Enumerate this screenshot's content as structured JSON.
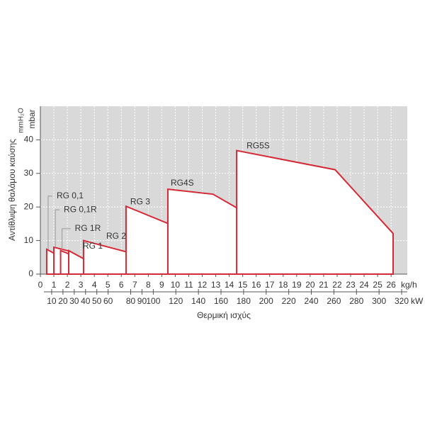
{
  "chart_data": {
    "type": "area-fields",
    "xlabel": "Θερμική ισχύς",
    "ylabel": "Αντίθλιψη θαλάμου καύσης",
    "xunit": "kg/h",
    "x2unit": "kW",
    "yunit": "mmH₂O",
    "yunit2": "mbar",
    "xlim": [
      0,
      27.2
    ],
    "xticks": [
      0,
      1,
      2,
      3,
      4,
      5,
      6,
      7,
      8,
      9,
      10,
      11,
      12,
      13,
      14,
      15,
      16,
      17,
      18,
      19,
      20,
      21,
      22,
      23,
      24,
      25,
      26
    ],
    "x2lim": [
      0,
      325
    ],
    "x2ticks": [
      10,
      20,
      30,
      40,
      50,
      60,
      80,
      90,
      100,
      120,
      140,
      160,
      180,
      200,
      220,
      240,
      260,
      280,
      300,
      320
    ],
    "ylim": [
      0,
      50
    ],
    "yticks": [
      0,
      10,
      20,
      30,
      40
    ],
    "grid": true,
    "color": "#d42a37",
    "series": [
      {
        "name": "RG 0,1",
        "x": [
          0.47,
          0.47,
          1.1,
          1.1
        ],
        "values": [
          0,
          7.4,
          6,
          0
        ]
      },
      {
        "name": "RG 0,1R",
        "x": [
          1.0,
          1.0,
          2.2,
          2.2
        ],
        "values": [
          0,
          8,
          6.8,
          0
        ]
      },
      {
        "name": "RG 1R",
        "x": [
          1.5,
          1.5,
          3.1,
          3.1
        ],
        "values": [
          0,
          7,
          4.5,
          0
        ]
      },
      {
        "name": "RG 1",
        "x": [
          2.1,
          2.1,
          4.4,
          4.4
        ],
        "values": [
          0,
          7,
          2,
          0
        ]
      },
      {
        "name": "RG 2",
        "x": [
          3.2,
          3.2,
          6.7,
          9.45,
          9.45
        ],
        "values": [
          0,
          10,
          6.3,
          0.4,
          0
        ]
      },
      {
        "name": "RG 3",
        "x": [
          6.35,
          6.35,
          16.2,
          16.2
        ],
        "values": [
          0,
          20.2,
          4,
          0
        ]
      },
      {
        "name": "RG4S",
        "x": [
          9.45,
          9.45,
          12.8,
          16,
          18,
          19.85,
          19.85
        ],
        "values": [
          0,
          25.3,
          23.8,
          16.4,
          10,
          2.6,
          0
        ]
      },
      {
        "name": "RG5S",
        "x": [
          14.55,
          14.55,
          21.85,
          26.15,
          26.15
        ],
        "values": [
          0,
          36.8,
          31.1,
          12.1,
          0
        ]
      }
    ]
  }
}
